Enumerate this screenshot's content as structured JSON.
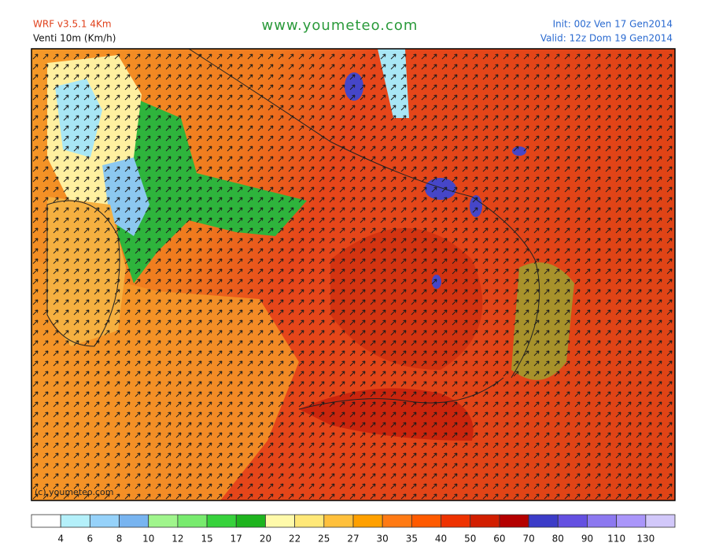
{
  "header": {
    "model": "WRF v3.5.1 4Km",
    "field": "Venti 10m (Km/h)",
    "site": "www.youmeteo.com",
    "init": "Init: 00z Ven  17 Gen2014",
    "valid": "Valid: 12z Dom 19 Gen2014"
  },
  "map": {
    "watermark": "(c) youmeteo.com"
  },
  "legend": {
    "colors": [
      "#ffffff",
      "#b4f0fa",
      "#96d2fa",
      "#78b4f0",
      "#a0f58c",
      "#78eb6e",
      "#37d23c",
      "#1eb41e",
      "#fffaaa",
      "#ffe878",
      "#ffc03c",
      "#ffa000",
      "#ff7a14",
      "#ff5a00",
      "#ee3200",
      "#d21e00",
      "#b40000",
      "#3c3cc8",
      "#6450e1",
      "#8c78f0",
      "#aa96fa",
      "#d2c8fa"
    ],
    "labels": [
      4,
      6,
      8,
      10,
      12,
      15,
      17,
      20,
      22,
      25,
      27,
      30,
      35,
      40,
      50,
      60,
      70,
      80,
      90,
      110,
      130
    ]
  }
}
